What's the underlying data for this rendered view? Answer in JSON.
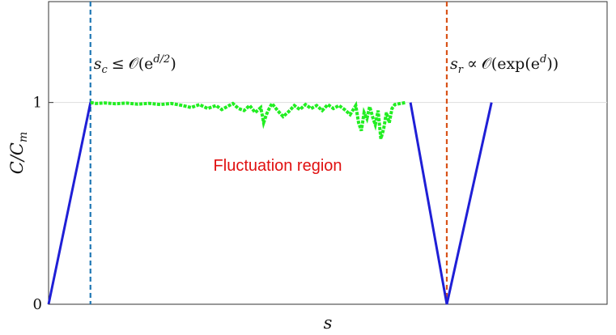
{
  "chart_data": {
    "type": "line",
    "title": "",
    "xlabel": "s",
    "ylabel": "C/C_m",
    "ylabel_parts": {
      "main": "C/C",
      "sub": "m"
    },
    "xlim": [
      0,
      100
    ],
    "ylim": [
      0,
      1.5
    ],
    "y_ticks": [
      0,
      1
    ],
    "y_tick_labels": [
      "0",
      "1"
    ],
    "x_ticks": [],
    "grid": false,
    "legend": "none",
    "colors": {
      "rise_line": "#1f1fd6",
      "fluctuation": "#22ee22",
      "sc_line": "#1f77b4",
      "sr_line": "#d95319",
      "grid_line": "#dddddd",
      "region_text": "#e01010"
    },
    "series": [
      {
        "values": [
          [
            0,
            0
          ],
          [
            7.5,
            1
          ]
        ]
      },
      {
        "values": [
          [
            64.8,
            1
          ],
          [
            71.3,
            0
          ],
          [
            79.3,
            1
          ]
        ]
      },
      {
        "values": [
          [
            7.5,
            1.0
          ],
          [
            8.5,
            0.995
          ],
          [
            10,
            0.998
          ],
          [
            12,
            0.994
          ],
          [
            14,
            0.997
          ],
          [
            16,
            0.992
          ],
          [
            18,
            0.996
          ],
          [
            20,
            0.99
          ],
          [
            22,
            0.995
          ],
          [
            24,
            0.985
          ],
          [
            25.5,
            0.975
          ],
          [
            27,
            0.99
          ],
          [
            28.5,
            0.97
          ],
          [
            30,
            0.985
          ],
          [
            31,
            0.965
          ],
          [
            32,
            0.98
          ],
          [
            33,
            0.995
          ],
          [
            34,
            0.97
          ],
          [
            35,
            0.96
          ],
          [
            36,
            0.985
          ],
          [
            37,
            0.95
          ],
          [
            38,
            0.975
          ],
          [
            38.5,
            0.9
          ],
          [
            39,
            0.94
          ],
          [
            39.5,
            0.97
          ],
          [
            40,
            0.995
          ],
          [
            41,
            0.96
          ],
          [
            42,
            0.93
          ],
          [
            43,
            0.955
          ],
          [
            44,
            0.985
          ],
          [
            45,
            0.965
          ],
          [
            46,
            0.99
          ],
          [
            47,
            0.97
          ],
          [
            48,
            0.985
          ],
          [
            49,
            0.96
          ],
          [
            50,
            0.99
          ],
          [
            51,
            0.97
          ],
          [
            52,
            0.985
          ],
          [
            53,
            0.965
          ],
          [
            54,
            0.94
          ],
          [
            55,
            0.985
          ],
          [
            55.5,
            0.9
          ],
          [
            56,
            0.86
          ],
          [
            56.5,
            0.95
          ],
          [
            57,
            0.92
          ],
          [
            57.5,
            0.98
          ],
          [
            58,
            0.93
          ],
          [
            58.5,
            0.89
          ],
          [
            59,
            0.96
          ],
          [
            59.5,
            0.82
          ],
          [
            60,
            0.87
          ],
          [
            60.5,
            0.95
          ],
          [
            61,
            0.9
          ],
          [
            61.5,
            0.97
          ],
          [
            62,
            0.99
          ],
          [
            63,
            0.995
          ],
          [
            64,
            1.0
          ]
        ]
      }
    ],
    "vlines": [
      {
        "x": 7.5,
        "style": "dashed"
      },
      {
        "x": 71.3,
        "style": "dashed"
      }
    ],
    "hlines": [
      {
        "y": 1,
        "style": "solid-light"
      }
    ],
    "annotations": [
      {
        "id": "sc",
        "lhs": "s",
        "sub": "c",
        "rel": "≤",
        "rhs": "𝒪(e",
        "sup": "d/2",
        "close": ")",
        "x": 7.5
      },
      {
        "id": "sr",
        "lhs": "s",
        "sub": "r",
        "rel": "∝",
        "rhs": "𝒪(exp(e",
        "sup": "d",
        "close": "))",
        "x": 71.3
      },
      {
        "id": "region",
        "text": "Fluctuation region",
        "x": 29.5,
        "y": 0.69
      }
    ]
  }
}
